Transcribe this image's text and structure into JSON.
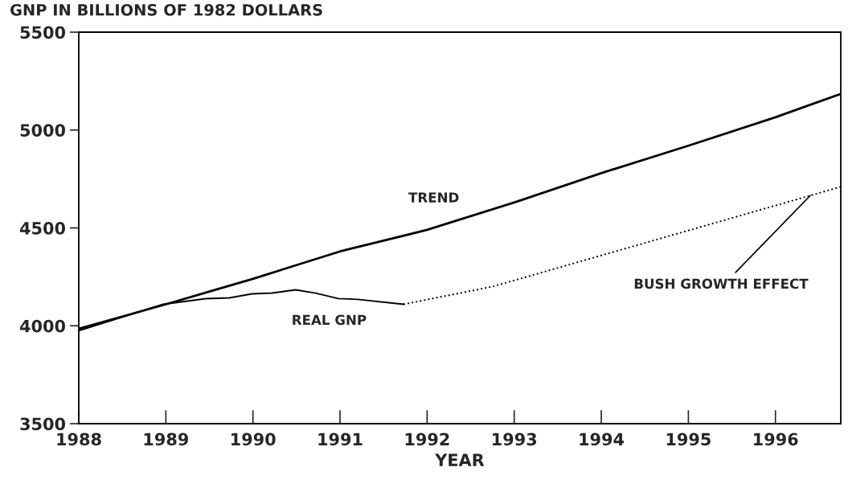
{
  "chart_data": {
    "type": "line",
    "title": "GNP IN BILLIONS OF 1982 DOLLARS",
    "xlabel": "YEAR",
    "xlim": [
      1988,
      1996.75
    ],
    "xticks": [
      1988,
      1989,
      1990,
      1991,
      1992,
      1993,
      1994,
      1995,
      1996
    ],
    "ylim": [
      3500,
      5500
    ],
    "yticks": [
      3500,
      4000,
      4500,
      5000,
      5500
    ],
    "grid": false,
    "legend": false,
    "marker": "none",
    "series": [
      {
        "name": "TREND",
        "color": "#000000",
        "line_style": "solid",
        "x": [
          1988,
          1989,
          1990,
          1990.5,
          1991,
          1992,
          1993,
          1994,
          1995,
          1996,
          1996.75
        ],
        "values": [
          3985,
          4110,
          4240,
          4310,
          4380,
          4490,
          4630,
          4780,
          4920,
          5065,
          5185
        ]
      },
      {
        "name": "REAL GNP",
        "color": "#000000",
        "line_style": "solid",
        "x": [
          1988,
          1988.97,
          1989.46,
          1989.73,
          1989.99,
          1990.22,
          1990.49,
          1990.72,
          1990.98,
          1991.2,
          1991.73
        ],
        "values": [
          3975,
          4110,
          4139,
          4143,
          4163,
          4167,
          4184,
          4167,
          4139,
          4135,
          4110
        ]
      },
      {
        "name": "BUSH GROWTH EFFECT",
        "color": "#000000",
        "line_style": "dotted",
        "x": [
          1991.73,
          1992.75,
          1996.75
        ],
        "values": [
          4110,
          4200,
          4710
        ]
      }
    ]
  }
}
